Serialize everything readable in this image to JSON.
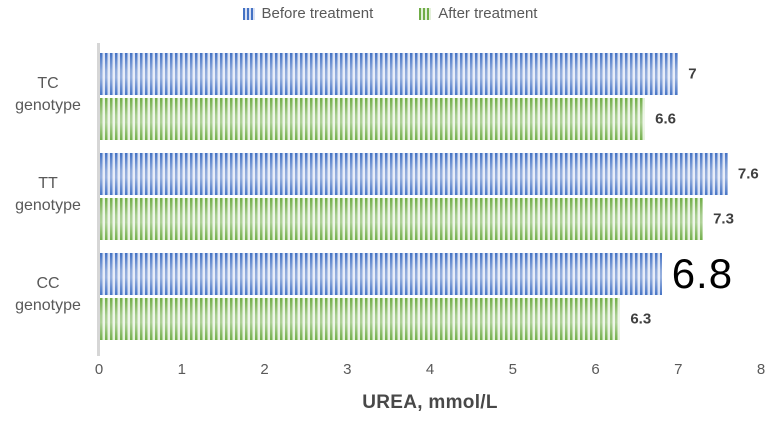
{
  "chart_data": {
    "type": "bar",
    "orientation": "horizontal",
    "categories": [
      "TC genotype",
      "TT genotype",
      "CC genotype"
    ],
    "series": [
      {
        "name": "Before treatment",
        "color": "#4472C4",
        "stripe_color": "#d7e0f4",
        "values": [
          7,
          7.6,
          6.8
        ],
        "data_labels": [
          {
            "text": "7",
            "emphasis": false
          },
          {
            "text": "7.6",
            "emphasis": false
          },
          {
            "text": "6.8",
            "emphasis": true
          }
        ]
      },
      {
        "name": "After treatment",
        "color": "#70AD47",
        "stripe_color": "#e3f0da",
        "values": [
          6.6,
          7.3,
          6.3
        ],
        "data_labels": [
          {
            "text": "6.6",
            "emphasis": false
          },
          {
            "text": "7.3",
            "emphasis": false
          },
          {
            "text": "6.3",
            "emphasis": false
          }
        ]
      }
    ],
    "xlabel": "UREA, mmol/L",
    "xlim": [
      0,
      8
    ],
    "xticks": [
      "0",
      "1",
      "2",
      "3",
      "4",
      "5",
      "6",
      "7",
      "8"
    ],
    "legend_position": "top",
    "grid": false
  }
}
